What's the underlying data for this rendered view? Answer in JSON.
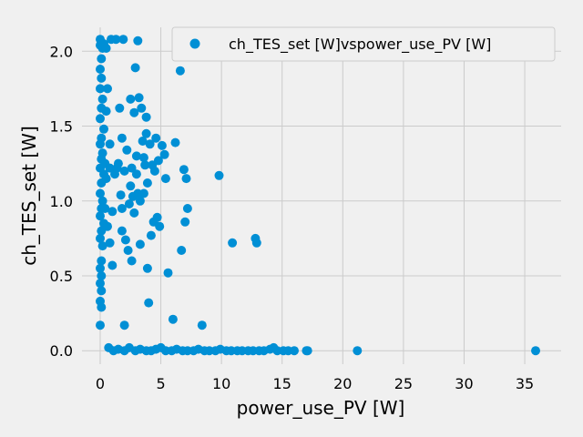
{
  "chart_data": {
    "type": "scatter",
    "title": "",
    "xlabel": "power_use_PV [W]",
    "ylabel": "ch_TES_set [W]",
    "xlim": [
      -1.5,
      38
    ],
    "ylim": [
      -0.09,
      2.16
    ],
    "xticks": [
      0,
      5,
      10,
      15,
      20,
      25,
      30,
      35
    ],
    "xtick_labels": [
      "0",
      "5",
      "10",
      "15",
      "20",
      "25",
      "30",
      "35"
    ],
    "yticks": [
      0.0,
      0.5,
      1.0,
      1.5,
      2.0
    ],
    "ytick_labels": [
      "0.0",
      "0.5",
      "1.0",
      "1.5",
      "2.0"
    ],
    "grid": true,
    "legend_position": "top-right",
    "colors": {
      "series": "#008fd5",
      "background": "#f0f0f0",
      "grid": "#cbcbcb"
    },
    "series": [
      {
        "name": "ch_TES_set [W]vspower_use_PV [W]",
        "points": [
          [
            0.0,
            2.08
          ],
          [
            0.1,
            2.06
          ],
          [
            0.0,
            2.04
          ],
          [
            0.2,
            2.02
          ],
          [
            0.3,
            2.05
          ],
          [
            0.1,
            1.95
          ],
          [
            0.0,
            1.88
          ],
          [
            0.1,
            1.82
          ],
          [
            0.0,
            1.75
          ],
          [
            0.2,
            1.68
          ],
          [
            0.1,
            1.62
          ],
          [
            0.0,
            1.55
          ],
          [
            0.3,
            1.48
          ],
          [
            0.1,
            1.42
          ],
          [
            0.0,
            1.38
          ],
          [
            0.2,
            1.32
          ],
          [
            0.1,
            1.28
          ],
          [
            0.0,
            1.22
          ],
          [
            0.3,
            1.18
          ],
          [
            0.1,
            1.12
          ],
          [
            0.0,
            1.05
          ],
          [
            0.2,
            1.0
          ],
          [
            0.1,
            0.95
          ],
          [
            0.0,
            0.9
          ],
          [
            0.3,
            0.85
          ],
          [
            0.1,
            0.8
          ],
          [
            0.0,
            0.75
          ],
          [
            0.2,
            0.7
          ],
          [
            0.1,
            0.6
          ],
          [
            0.0,
            0.55
          ],
          [
            0.1,
            0.5
          ],
          [
            0.0,
            0.45
          ],
          [
            0.1,
            0.4
          ],
          [
            0.0,
            0.33
          ],
          [
            0.1,
            0.29
          ],
          [
            0.0,
            0.17
          ],
          [
            0.4,
            1.25
          ],
          [
            0.4,
            0.95
          ],
          [
            0.5,
            2.02
          ],
          [
            0.5,
            1.6
          ],
          [
            0.5,
            1.15
          ],
          [
            0.6,
            1.75
          ],
          [
            0.6,
            0.83
          ],
          [
            0.8,
            1.38
          ],
          [
            0.8,
            1.22
          ],
          [
            0.9,
            2.08
          ],
          [
            1.0,
            0.93
          ],
          [
            1.0,
            0.57
          ],
          [
            0.8,
            0.72
          ],
          [
            1.2,
            1.18
          ],
          [
            1.3,
            2.08
          ],
          [
            1.4,
            1.22
          ],
          [
            1.5,
            1.25
          ],
          [
            1.6,
            1.62
          ],
          [
            1.7,
            1.04
          ],
          [
            1.8,
            0.95
          ],
          [
            1.8,
            0.8
          ],
          [
            1.8,
            1.42
          ],
          [
            1.9,
            2.08
          ],
          [
            2.0,
            0.17
          ],
          [
            2.0,
            1.2
          ],
          [
            2.1,
            0.74
          ],
          [
            2.2,
            1.34
          ],
          [
            2.3,
            0.67
          ],
          [
            2.4,
            0.98
          ],
          [
            2.5,
            1.68
          ],
          [
            2.5,
            1.1
          ],
          [
            2.6,
            1.22
          ],
          [
            2.6,
            0.6
          ],
          [
            2.7,
            1.03
          ],
          [
            2.8,
            1.59
          ],
          [
            2.8,
            0.92
          ],
          [
            2.9,
            1.89
          ],
          [
            3.0,
            1.3
          ],
          [
            3.0,
            1.18
          ],
          [
            3.1,
            2.07
          ],
          [
            3.1,
            1.05
          ],
          [
            3.2,
            1.69
          ],
          [
            3.3,
            0.71
          ],
          [
            3.3,
            1.0
          ],
          [
            3.4,
            1.62
          ],
          [
            3.5,
            1.4
          ],
          [
            3.6,
            1.29
          ],
          [
            3.6,
            1.05
          ],
          [
            3.7,
            1.24
          ],
          [
            3.8,
            1.56
          ],
          [
            3.8,
            1.45
          ],
          [
            3.9,
            0.55
          ],
          [
            3.9,
            1.12
          ],
          [
            4.0,
            0.32
          ],
          [
            4.1,
            1.38
          ],
          [
            4.2,
            0.77
          ],
          [
            4.3,
            1.24
          ],
          [
            4.4,
            0.86
          ],
          [
            4.5,
            1.2
          ],
          [
            4.6,
            1.42
          ],
          [
            4.7,
            0.89
          ],
          [
            4.8,
            1.27
          ],
          [
            4.9,
            0.83
          ],
          [
            5.1,
            1.37
          ],
          [
            5.3,
            1.31
          ],
          [
            5.4,
            1.15
          ],
          [
            5.6,
            0.52
          ],
          [
            6.0,
            0.21
          ],
          [
            6.2,
            1.39
          ],
          [
            6.6,
            1.87
          ],
          [
            6.7,
            0.67
          ],
          [
            6.9,
            1.21
          ],
          [
            7.0,
            0.86
          ],
          [
            7.1,
            1.15
          ],
          [
            7.2,
            0.95
          ],
          [
            8.4,
            0.17
          ],
          [
            9.8,
            1.17
          ],
          [
            10.9,
            0.72
          ],
          [
            12.8,
            0.75
          ],
          [
            12.9,
            0.72
          ],
          [
            0.7,
            0.02
          ],
          [
            1.1,
            0.0
          ],
          [
            1.5,
            0.01
          ],
          [
            2.0,
            0.0
          ],
          [
            2.4,
            0.02
          ],
          [
            2.9,
            0.0
          ],
          [
            3.3,
            0.01
          ],
          [
            3.8,
            0.0
          ],
          [
            4.2,
            0.0
          ],
          [
            4.6,
            0.01
          ],
          [
            5.0,
            0.02
          ],
          [
            5.4,
            0.0
          ],
          [
            5.9,
            0.0
          ],
          [
            6.3,
            0.01
          ],
          [
            6.8,
            0.0
          ],
          [
            7.2,
            0.0
          ],
          [
            7.7,
            0.0
          ],
          [
            8.1,
            0.01
          ],
          [
            8.6,
            0.0
          ],
          [
            9.0,
            0.0
          ],
          [
            9.5,
            0.0
          ],
          [
            9.9,
            0.01
          ],
          [
            10.4,
            0.0
          ],
          [
            10.8,
            0.0
          ],
          [
            11.3,
            0.0
          ],
          [
            11.7,
            0.0
          ],
          [
            12.2,
            0.0
          ],
          [
            12.6,
            0.0
          ],
          [
            13.1,
            0.0
          ],
          [
            13.5,
            0.0
          ],
          [
            14.0,
            0.01
          ],
          [
            14.3,
            0.02
          ],
          [
            14.6,
            0.0
          ],
          [
            15.1,
            0.0
          ],
          [
            15.5,
            0.0
          ],
          [
            16.0,
            0.0
          ],
          [
            17.0,
            0.0
          ],
          [
            17.1,
            0.0
          ],
          [
            21.2,
            0.0
          ],
          [
            35.9,
            0.0
          ]
        ]
      }
    ]
  }
}
